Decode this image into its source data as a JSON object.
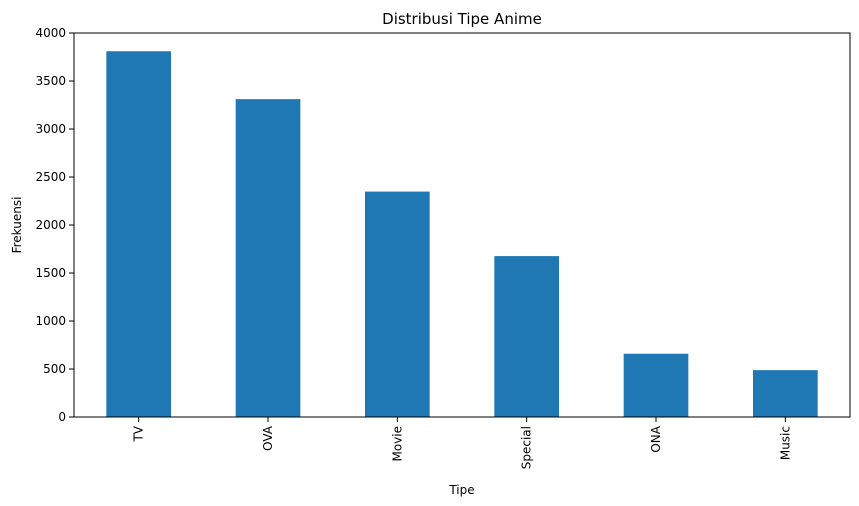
{
  "chart_data": {
    "type": "bar",
    "title": "Distribusi Tipe Anime",
    "xlabel": "Tipe",
    "ylabel": "Frekuensi",
    "categories": [
      "TV",
      "OVA",
      "Movie",
      "Special",
      "ONA",
      "Music"
    ],
    "values": [
      3810,
      3311,
      2348,
      1676,
      659,
      488
    ],
    "ylim": [
      0,
      4000
    ],
    "yticks": [
      0,
      500,
      1000,
      1500,
      2000,
      2500,
      3000,
      3500,
      4000
    ],
    "bar_color": "#1f77b4",
    "grid": false,
    "legend": "none",
    "x_tick_rotation": "vertical"
  }
}
